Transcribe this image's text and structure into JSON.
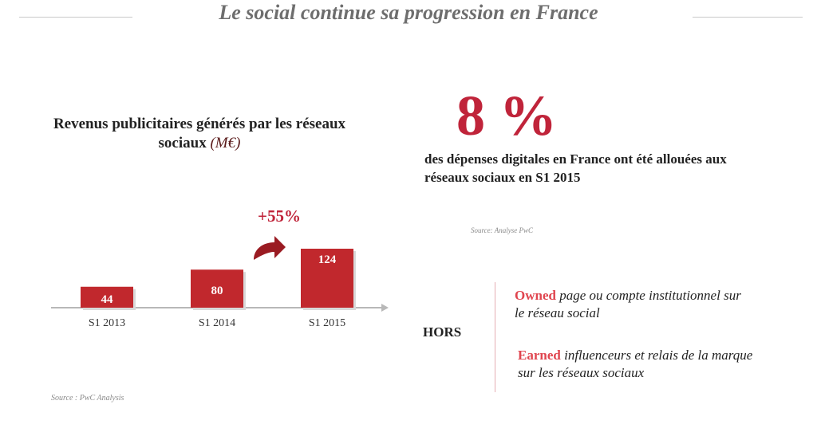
{
  "page": {
    "title": "Le social continue sa progression en France"
  },
  "colors": {
    "accent": "#c0243a",
    "bar": "#c1282d",
    "keyword": "#e0454f",
    "title_gray": "#6e6e6e"
  },
  "left": {
    "title_main": "Revenus publicitaires générés par les réseaux sociaux",
    "title_unit": "(M€)",
    "growth_label": "+55%",
    "source": "Source : PwC Analysis"
  },
  "chart_data": {
    "type": "bar",
    "title": "Revenus publicitaires générés par les réseaux sociaux (M€)",
    "categories": [
      "S1 2013",
      "S1 2014",
      "S1 2015"
    ],
    "values": [
      44,
      80,
      124
    ],
    "annotations": [
      "+55%"
    ],
    "xlabel": "",
    "ylabel": "",
    "ylim": [
      0,
      124
    ],
    "grid": false,
    "legend": "none"
  },
  "right": {
    "big_stat": "8 %",
    "stat_desc": "des dépenses digitales en France ont été allouées aux réseaux sociaux en S1 2015",
    "source": "Source: Analyse PwC",
    "hors": "HORS",
    "owned_keyword": "Owned",
    "owned_text": "page ou compte institutionnel sur le réseau social",
    "earned_keyword": "Earned",
    "earned_text": "influenceurs et relais de la marque sur les réseaux sociaux"
  }
}
